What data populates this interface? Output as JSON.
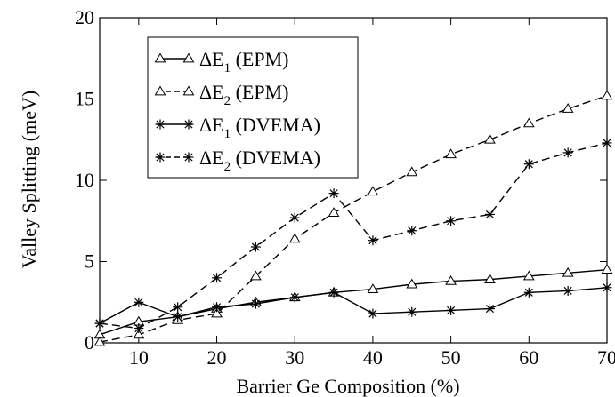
{
  "chart_data": {
    "type": "line",
    "xlabel": "Barrier Ge Composition (%)",
    "ylabel": "Valley Splitting (meV)",
    "xlim": [
      5,
      70
    ],
    "ylim": [
      0,
      20
    ],
    "xticks": [
      10,
      20,
      30,
      40,
      50,
      60,
      70
    ],
    "yticks": [
      0,
      5,
      10,
      15,
      20
    ],
    "grid": false,
    "legend_position": "top-left",
    "series": [
      {
        "name": "ΔE₁ (EPM)",
        "label_base": "ΔE",
        "label_sub": "1",
        "label_tail": " (EPM)",
        "marker": "triangle",
        "line_style": "solid",
        "x": [
          5,
          10,
          15,
          20,
          25,
          30,
          35,
          40,
          45,
          50,
          55,
          60,
          65,
          70
        ],
        "y": [
          0.5,
          1.3,
          1.6,
          2.1,
          2.5,
          2.8,
          3.1,
          3.3,
          3.6,
          3.8,
          3.9,
          4.1,
          4.3,
          4.5
        ]
      },
      {
        "name": "ΔE₂ (EPM)",
        "label_base": "ΔE",
        "label_sub": "2",
        "label_tail": " (EPM)",
        "marker": "triangle",
        "line_style": "dashed",
        "x": [
          5,
          10,
          15,
          20,
          25,
          30,
          35,
          40,
          45,
          50,
          55,
          60,
          65,
          70
        ],
        "y": [
          0.05,
          0.5,
          1.4,
          1.8,
          4.1,
          6.4,
          8.0,
          9.3,
          10.5,
          11.6,
          12.5,
          13.5,
          14.4,
          15.2
        ]
      },
      {
        "name": "ΔE₁ (DVEMA)",
        "label_base": "ΔE",
        "label_sub": "1",
        "label_tail": " (DVEMA)",
        "marker": "star",
        "line_style": "solid",
        "x": [
          5,
          10,
          15,
          20,
          25,
          30,
          35,
          40,
          45,
          50,
          55,
          60,
          65,
          70
        ],
        "y": [
          1.2,
          2.5,
          1.6,
          2.2,
          2.4,
          2.8,
          3.1,
          1.8,
          1.9,
          2.0,
          2.1,
          3.1,
          3.2,
          3.4
        ]
      },
      {
        "name": "ΔE₂ (DVEMA)",
        "label_base": "ΔE",
        "label_sub": "2",
        "label_tail": " (DVEMA)",
        "marker": "star",
        "line_style": "dashed",
        "x": [
          5,
          10,
          15,
          20,
          25,
          30,
          35,
          40,
          45,
          50,
          55,
          60,
          65,
          70
        ],
        "y": [
          1.2,
          0.9,
          2.2,
          4.0,
          5.9,
          7.7,
          9.2,
          6.3,
          6.9,
          7.5,
          7.9,
          11.0,
          11.7,
          12.3
        ]
      }
    ],
    "colors": {
      "line": "#000000",
      "background": "#ffffff"
    }
  }
}
